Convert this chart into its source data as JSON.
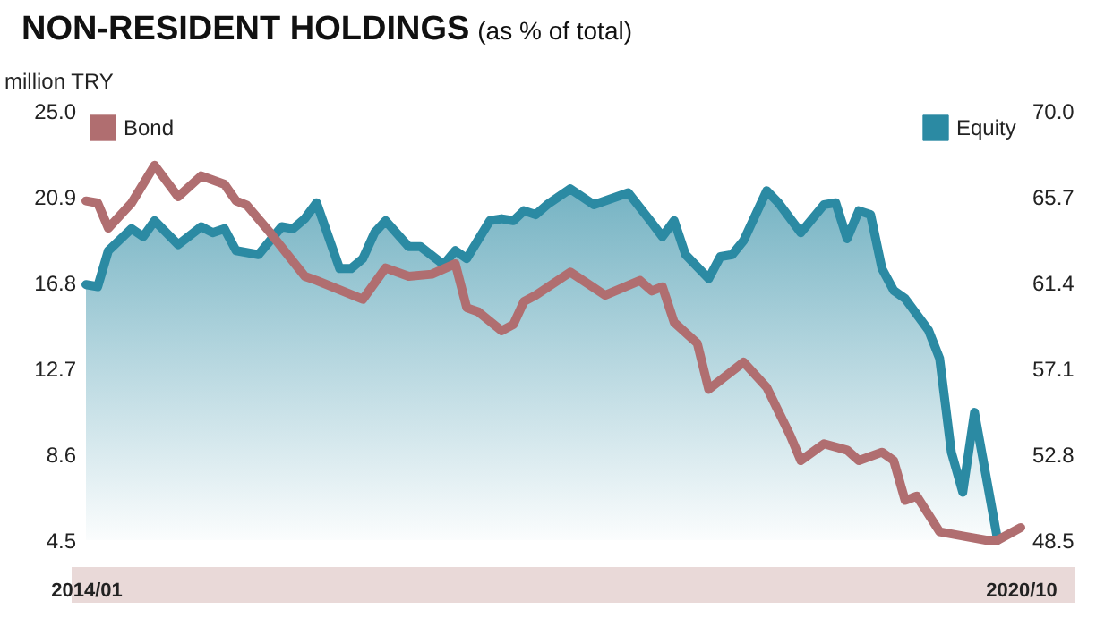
{
  "chart_data": {
    "type": "line",
    "title": "NON-RESIDENT HOLDINGS",
    "subtitle": "(as % of total)",
    "ylabel": "million TRY",
    "xlim": [
      "2014-01",
      "2020-10"
    ],
    "xticks": [
      {
        "value": "2014-01",
        "label": "2014/01"
      },
      {
        "value": "2020-10",
        "label": "2020/10"
      }
    ],
    "ylim": [
      4.5,
      25
    ],
    "yticks": [
      4.5,
      8.6,
      12.7,
      16.8,
      20.9,
      {
        "value": 25,
        "label": "25.0"
      }
    ],
    "y2lim": [
      48.5,
      70
    ],
    "y2ticks": [
      48.5,
      52.8,
      57.1,
      61.4,
      65.7,
      {
        "value": 70,
        "label": "70.0"
      }
    ],
    "legend": "top",
    "grid": false,
    "marker": "none",
    "line_style": "solid",
    "series": [
      {
        "name": "Bond",
        "type": "line",
        "color": "#b06e70",
        "x": [
          "2014-01",
          "2014-02",
          "2014-03",
          "2014-05",
          "2014-07",
          "2014-09",
          "2014-11",
          "2015-01",
          "2015-02",
          "2015-03",
          "2015-05",
          "2015-08",
          "2015-09",
          "2016-01",
          "2016-03",
          "2016-05",
          "2016-07",
          "2016-09",
          "2016-10",
          "2016-11",
          "2017-01",
          "2017-02",
          "2017-03",
          "2017-04",
          "2017-07",
          "2017-10",
          "2018-01",
          "2018-02",
          "2018-03",
          "2018-04",
          "2018-06",
          "2018-07",
          "2018-10",
          "2018-12",
          "2019-02",
          "2019-03",
          "2019-05",
          "2019-07",
          "2019-08",
          "2019-10",
          "2019-11",
          "2019-12",
          "2020-01",
          "2020-03",
          "2020-05",
          "2020-07",
          "2020-08",
          "2020-10"
        ],
        "values": [
          20.7,
          20.6,
          19.4,
          20.6,
          22.4,
          20.9,
          21.9,
          21.5,
          20.7,
          20.5,
          19.2,
          17.1,
          16.9,
          16.0,
          17.5,
          17.1,
          17.2,
          17.7,
          15.6,
          15.4,
          14.5,
          14.8,
          15.9,
          16.2,
          17.3,
          16.2,
          16.9,
          16.4,
          16.6,
          14.9,
          13.9,
          11.7,
          13.0,
          11.8,
          9.5,
          8.3,
          9.1,
          8.8,
          8.3,
          8.7,
          8.3,
          6.4,
          6.6,
          4.9,
          4.7,
          4.5,
          4.5,
          5.1
        ]
      },
      {
        "name": "Equity",
        "type": "area",
        "axis": "y2",
        "color": "#2b8aa3",
        "x": [
          "2014-01",
          "2014-02",
          "2014-03",
          "2014-05",
          "2014-06",
          "2014-07",
          "2014-09",
          "2014-11",
          "2014-12",
          "2015-01",
          "2015-02",
          "2015-04",
          "2015-06",
          "2015-07",
          "2015-08",
          "2015-09",
          "2015-11",
          "2015-12",
          "2016-01",
          "2016-02",
          "2016-03",
          "2016-05",
          "2016-06",
          "2016-08",
          "2016-09",
          "2016-10",
          "2016-12",
          "2017-01",
          "2017-02",
          "2017-03",
          "2017-04",
          "2017-05",
          "2017-07",
          "2017-09",
          "2017-12",
          "2018-02",
          "2018-03",
          "2018-04",
          "2018-05",
          "2018-07",
          "2018-08",
          "2018-09",
          "2018-10",
          "2018-12",
          "2019-01",
          "2019-03",
          "2019-05",
          "2019-06",
          "2019-07",
          "2019-08",
          "2019-09",
          "2019-10",
          "2019-11",
          "2019-12",
          "2020-02",
          "2020-03",
          "2020-04",
          "2020-05",
          "2020-06",
          "2020-08"
        ],
        "values": [
          61.3,
          61.2,
          63.0,
          64.1,
          63.7,
          64.5,
          63.3,
          64.2,
          63.9,
          64.1,
          63.0,
          62.8,
          64.2,
          64.1,
          64.6,
          65.4,
          62.1,
          62.1,
          62.6,
          63.9,
          64.5,
          63.2,
          63.2,
          62.3,
          63.0,
          62.6,
          64.5,
          64.6,
          64.5,
          65.0,
          64.8,
          65.3,
          66.1,
          65.3,
          65.9,
          64.4,
          63.7,
          64.5,
          62.8,
          61.6,
          62.7,
          62.8,
          63.5,
          66.0,
          65.4,
          63.9,
          65.3,
          65.4,
          63.6,
          65.0,
          64.8,
          62.1,
          61.0,
          60.6,
          59.0,
          57.6,
          52.9,
          50.9,
          54.9,
          48.5
        ]
      }
    ]
  }
}
